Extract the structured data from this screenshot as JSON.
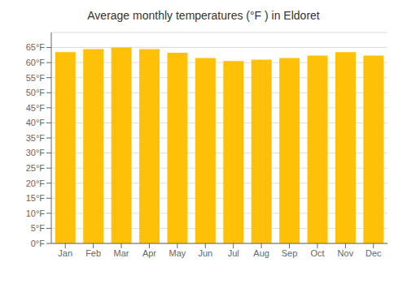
{
  "chart_data": {
    "type": "bar",
    "title": "Average monthly temperatures (°F ) in Eldoret",
    "categories": [
      "Jan",
      "Feb",
      "Mar",
      "Apr",
      "May",
      "Jun",
      "Jul",
      "Aug",
      "Sep",
      "Oct",
      "Nov",
      "Dec"
    ],
    "values": [
      63.5,
      64.5,
      65.0,
      64.5,
      63.3,
      61.5,
      60.5,
      61.0,
      61.5,
      62.3,
      63.5,
      62.3
    ],
    "color": "#FFC107",
    "ylim": [
      0,
      70
    ],
    "yticks": [
      {
        "value": 0,
        "label": "0°F"
      },
      {
        "value": 5,
        "label": "5°F"
      },
      {
        "value": 10,
        "label": "10°F"
      },
      {
        "value": 15,
        "label": "15°F"
      },
      {
        "value": 20,
        "label": "20°F"
      },
      {
        "value": 25,
        "label": "25°F"
      },
      {
        "value": 30,
        "label": "30°F"
      },
      {
        "value": 35,
        "label": "35°F"
      },
      {
        "value": 40,
        "label": "40°F"
      },
      {
        "value": 45,
        "label": "45°F"
      },
      {
        "value": 50,
        "label": "50°F"
      },
      {
        "value": 55,
        "label": "55°F"
      },
      {
        "value": 60,
        "label": "60°F"
      },
      {
        "value": 65,
        "label": "65°F"
      }
    ],
    "grid": true
  }
}
